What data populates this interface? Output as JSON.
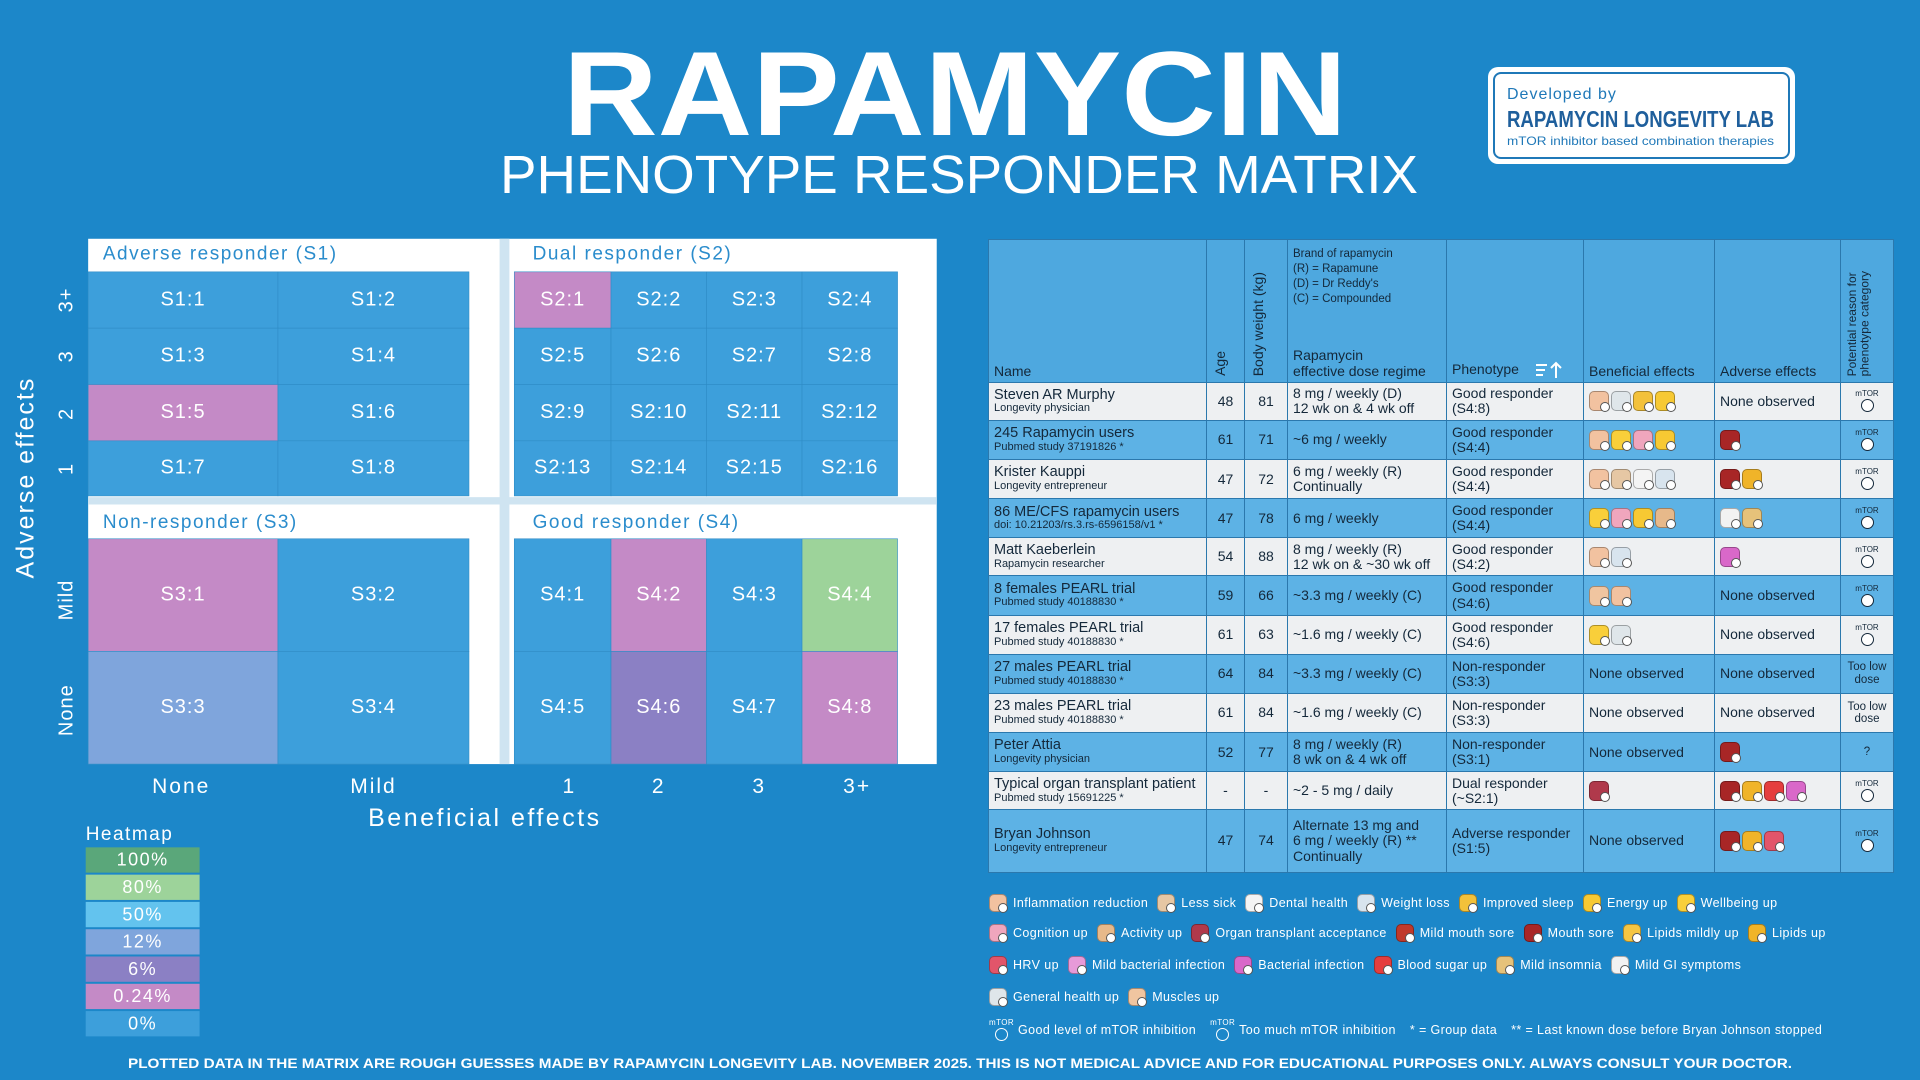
{
  "header": {
    "title": "RAPAMYCIN",
    "subtitle": "PHENOTYPE RESPONDER MATRIX"
  },
  "badge": {
    "developed_by": "Developed by",
    "lab": "RAPAMYCIN LONGEVITY LAB",
    "tagline": "mTOR inhibitor based combination therapies"
  },
  "matrix": {
    "y_axis_title": "Adverse effects",
    "x_axis_title": "Beneficial effects",
    "y_labels": [
      "3+",
      "3",
      "2",
      "1",
      "Mild",
      "None"
    ],
    "x_labels": [
      "None",
      "Mild",
      "1",
      "2",
      "3",
      "3+"
    ],
    "quadrants": [
      {
        "title": "Adverse responder (S1)",
        "cells": [
          {
            "label": "S1:1",
            "color": "#3d9fdb"
          },
          {
            "label": "S1:2",
            "color": "#3d9fdb"
          },
          {
            "label": "S1:3",
            "color": "#3d9fdb"
          },
          {
            "label": "S1:4",
            "color": "#3d9fdb"
          },
          {
            "label": "S1:5",
            "color": "#c48ac6"
          },
          {
            "label": "S1:6",
            "color": "#3d9fdb"
          },
          {
            "label": "S1:7",
            "color": "#3d9fdb"
          },
          {
            "label": "S1:8",
            "color": "#3d9fdb"
          }
        ]
      },
      {
        "title": "Dual responder (S2)",
        "cells": [
          {
            "label": "S2:1",
            "color": "#c48ac6"
          },
          {
            "label": "S2:2",
            "color": "#3d9fdb"
          },
          {
            "label": "S2:3",
            "color": "#3d9fdb"
          },
          {
            "label": "S2:4",
            "color": "#3d9fdb"
          },
          {
            "label": "S2:5",
            "color": "#3d9fdb"
          },
          {
            "label": "S2:6",
            "color": "#3d9fdb"
          },
          {
            "label": "S2:7",
            "color": "#3d9fdb"
          },
          {
            "label": "S2:8",
            "color": "#3d9fdb"
          },
          {
            "label": "S2:9",
            "color": "#3d9fdb"
          },
          {
            "label": "S2:10",
            "color": "#3d9fdb"
          },
          {
            "label": "S2:11",
            "color": "#3d9fdb"
          },
          {
            "label": "S2:12",
            "color": "#3d9fdb"
          },
          {
            "label": "S2:13",
            "color": "#3d9fdb"
          },
          {
            "label": "S2:14",
            "color": "#3d9fdb"
          },
          {
            "label": "S2:15",
            "color": "#3d9fdb"
          },
          {
            "label": "S2:16",
            "color": "#3d9fdb"
          }
        ]
      },
      {
        "title": "Non-responder (S3)",
        "cells": [
          {
            "label": "S3:1",
            "color": "#c48ac6"
          },
          {
            "label": "S3:2",
            "color": "#3d9fdb"
          },
          {
            "label": "S3:3",
            "color": "#7fa5dc"
          },
          {
            "label": "S3:4",
            "color": "#3d9fdb"
          }
        ]
      },
      {
        "title": "Good responder (S4)",
        "cells": [
          {
            "label": "S4:1",
            "color": "#3d9fdb"
          },
          {
            "label": "S4:2",
            "color": "#c48ac6"
          },
          {
            "label": "S4:3",
            "color": "#3d9fdb"
          },
          {
            "label": "S4:4",
            "color": "#9dd39a"
          },
          {
            "label": "S4:5",
            "color": "#3d9fdb"
          },
          {
            "label": "S4:6",
            "color": "#8b80c4"
          },
          {
            "label": "S4:7",
            "color": "#3d9fdb"
          },
          {
            "label": "S4:8",
            "color": "#c48ac6"
          }
        ]
      }
    ]
  },
  "heatmap": {
    "title": "Heatmap",
    "levels": [
      {
        "label": "100%",
        "color": "#5aa77a"
      },
      {
        "label": "80%",
        "color": "#9dd39a"
      },
      {
        "label": "50%",
        "color": "#63c3ee"
      },
      {
        "label": "12%",
        "color": "#7fa5dc"
      },
      {
        "label": "6%",
        "color": "#8b80c4"
      },
      {
        "label": "0.24%",
        "color": "#c48ac6"
      },
      {
        "label": "0%",
        "color": "#3d9fdb"
      }
    ]
  },
  "table": {
    "brand_note": [
      "Brand of rapamycin",
      "(R) = Rapamune",
      "(D) = Dr Reddy's",
      "(C) = Compounded"
    ],
    "columns": {
      "name": "Name",
      "age": "Age",
      "weight": "Body weight (kg)",
      "dose": [
        "Rapamycin",
        "effective dose regime"
      ],
      "phenotype": "Phenotype",
      "beneficial": "Beneficial effects",
      "adverse": "Adverse effects",
      "reason": [
        "Potential reason for",
        "phenotype category"
      ]
    },
    "mtor_icon": "mTOR",
    "rows": [
      {
        "name": "Steven AR Murphy",
        "note": "Longevity physician",
        "age": 48,
        "weight": 81,
        "dose": [
          "8 mg / weekly (D)",
          "12 wk on & 4 wk off"
        ],
        "phenotype": [
          "Good responder",
          "(S4:8)"
        ],
        "adverse": "None observed"
      },
      {
        "name": "245 Rapamycin users",
        "note": "Pubmed study 37191826 *",
        "age": 61,
        "weight": 71,
        "dose": [
          "~6 mg / weekly"
        ],
        "phenotype": [
          "Good responder",
          "(S4:4)"
        ]
      },
      {
        "name": "Krister Kauppi",
        "note": "Longevity entrepreneur",
        "age": 47,
        "weight": 72,
        "dose": [
          "6 mg / weekly (R)",
          "Continually"
        ],
        "phenotype": [
          "Good responder",
          "(S4:4)"
        ]
      },
      {
        "name": "86 ME/CFS rapamycin users",
        "note": "doi: 10.21203/rs.3.rs-6596158/v1 *",
        "age": 47,
        "weight": 78,
        "dose": [
          "6 mg / weekly"
        ],
        "phenotype": [
          "Good responder",
          "(S4:4)"
        ]
      },
      {
        "name": "Matt Kaeberlein",
        "note": "Rapamycin researcher",
        "age": 54,
        "weight": 88,
        "dose": [
          "8 mg / weekly (R)",
          "12 wk on & ~30 wk off"
        ],
        "phenotype": [
          "Good responder",
          "(S4:2)"
        ]
      },
      {
        "name": "8 females PEARL trial",
        "note": "Pubmed study 40188830 *",
        "age": 59,
        "weight": 66,
        "dose": [
          "~3.3 mg / weekly (C)"
        ],
        "phenotype": [
          "Good responder",
          "(S4:6)"
        ],
        "adverse": "None observed"
      },
      {
        "name": "17 females PEARL trial",
        "note": "Pubmed study 40188830 *",
        "age": 61,
        "weight": 63,
        "dose": [
          "~1.6 mg / weekly (C)"
        ],
        "phenotype": [
          "Good responder",
          "(S4:6)"
        ],
        "adverse": "None observed"
      },
      {
        "name": "27 males PEARL trial",
        "note": "Pubmed study 40188830 *",
        "age": 64,
        "weight": 84,
        "dose": [
          "~3.3 mg / weekly (C)"
        ],
        "phenotype": [
          "Non-responder",
          "(S3:3)"
        ],
        "beneficial": "None observed",
        "adverse": "None observed",
        "reason": [
          "Too low",
          "dose"
        ]
      },
      {
        "name": "23 males PEARL trial",
        "note": "Pubmed study 40188830 *",
        "age": 61,
        "weight": 84,
        "dose": [
          "~1.6 mg / weekly (C)"
        ],
        "phenotype": [
          "Non-responder",
          "(S3:3)"
        ],
        "beneficial": "None observed",
        "adverse": "None observed",
        "reason": [
          "Too low",
          "dose"
        ]
      },
      {
        "name": "Peter Attia",
        "note": "Longevity physician",
        "age": 52,
        "weight": 77,
        "dose": [
          "8 mg / weekly (R)",
          "8 wk on & 4 wk off"
        ],
        "phenotype": [
          "Non-responder",
          "(S3:1)"
        ],
        "beneficial": "None observed",
        "reason": [
          "?"
        ]
      },
      {
        "name": "Typical organ transplant patient",
        "note": "Pubmed study 15691225 *",
        "age": "-",
        "weight": "-",
        "dose": [
          "~2 - 5 mg / daily"
        ],
        "phenotype": [
          "Dual responder",
          "(~S2:1)"
        ]
      },
      {
        "name": "Bryan Johnson",
        "note": "Longevity entrepreneur",
        "age": 47,
        "weight": 74,
        "dose": [
          "Alternate 13 mg and",
          "6 mg / weekly (R) **",
          "Continually"
        ],
        "phenotype": [
          "Adverse responder",
          "(S1:5)"
        ],
        "beneficial": "None observed"
      }
    ]
  },
  "legend": {
    "rows": [
      [
        "Inflammation reduction",
        "Less sick",
        "Dental health",
        "Weight loss",
        "Improved sleep",
        "Energy up",
        "Wellbeing up"
      ],
      [
        "Cognition up",
        "Activity up",
        "Organ transplant acceptance",
        "Mild mouth sore",
        "Mouth sore",
        "Lipids mildly up",
        "Lipids up"
      ],
      [
        "HRV up",
        "Mild bacterial infection",
        "Bacterial infection",
        "Blood sugar up",
        "Mild insomnia",
        "Mild GI symptoms"
      ],
      [
        "General health up",
        "Muscles up"
      ],
      [
        "Good level of mTOR inhibition",
        "Too much mTOR inhibition",
        "* = Group data",
        "** = Last known dose before Bryan Johnson stopped"
      ]
    ]
  },
  "footnote": "PLOTTED DATA IN THE MATRIX ARE ROUGH GUESSES MADE BY RAPAMYCIN LONGEVITY LAB. NOVEMBER 2025. THIS IS NOT MEDICAL ADVICE AND FOR EDUCATIONAL PURPOSES ONLY. ALWAYS CONSULT YOUR DOCTOR."
}
